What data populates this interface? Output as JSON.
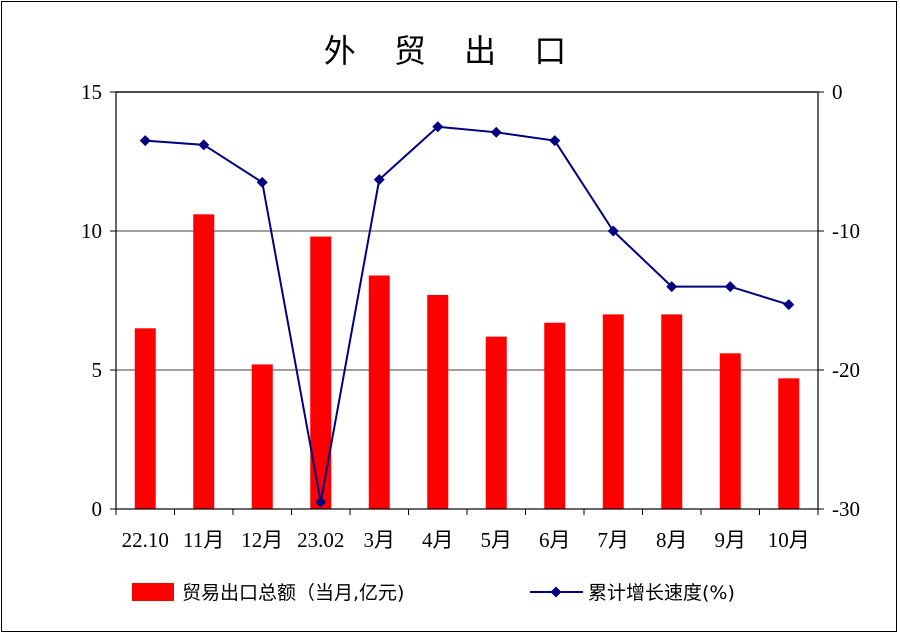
{
  "chart_data": {
    "type": "bar+line",
    "title": "外 贸 出 口",
    "categories": [
      "22.10",
      "11月",
      "12月",
      "23.02",
      "3月",
      "4月",
      "5月",
      "6月",
      "7月",
      "8月",
      "9月",
      "10月"
    ],
    "series": [
      {
        "name": "贸易出口总额（当月,亿元)",
        "type": "bar",
        "axis": "left",
        "color": "#ff0000",
        "values": [
          6.5,
          10.6,
          5.2,
          9.8,
          8.4,
          7.7,
          6.2,
          6.7,
          7.0,
          7.0,
          5.6,
          4.7
        ]
      },
      {
        "name": "累计增长速度(%)",
        "type": "line",
        "axis": "right",
        "color": "#000080",
        "values": [
          -3.5,
          -3.8,
          -6.5,
          -29.5,
          -6.3,
          -2.5,
          -2.9,
          -3.5,
          -10.0,
          -14.0,
          -14.0,
          -15.3
        ]
      }
    ],
    "y_left": {
      "ylim": [
        0,
        15
      ],
      "ticks": [
        "0",
        "5",
        "10",
        "15"
      ]
    },
    "y_right": {
      "ylim": [
        -30,
        0
      ],
      "ticks": [
        "-30",
        "-20",
        "-10",
        "0"
      ]
    },
    "grid": true,
    "legend": "bottom"
  }
}
